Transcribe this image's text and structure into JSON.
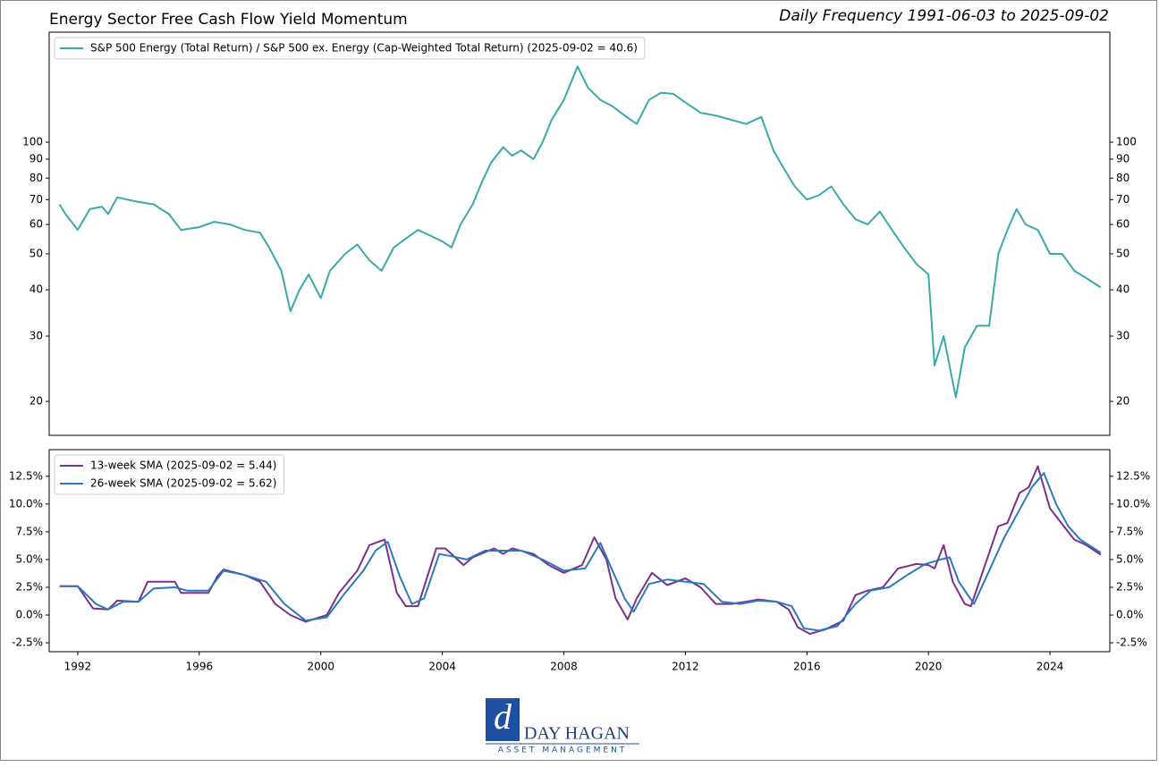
{
  "header": {
    "title": "Energy Sector Free Cash Flow Yield Momentum",
    "subtitle": "Daily Frequency 1991-06-03 to 2025-09-02"
  },
  "logo": {
    "name": "DAY HAGAN",
    "tagline": "ASSET MANAGEMENT"
  },
  "chart_data": [
    {
      "type": "line",
      "log": true,
      "legend": "upper left",
      "grid": false,
      "xlim": [
        1991.06,
        2025.97
      ],
      "ylim": [
        16.2,
        198
      ],
      "yticks": [
        20,
        30,
        40,
        50,
        60,
        70,
        80,
        90,
        100
      ],
      "series": [
        {
          "name": "S&P 500 Energy (Total Return) / S&P 500 ex. Energy (Cap-Weighted Total Return) (2025-09-02 = 40.6)",
          "color": "#3aaaa8",
          "x": [
            1991.4,
            1991.6,
            1992.0,
            1992.4,
            1992.8,
            1993.0,
            1993.3,
            1994.0,
            1994.5,
            1995.0,
            1995.4,
            1996.0,
            1996.5,
            1997.0,
            1997.5,
            1998.0,
            1998.3,
            1998.7,
            1999.0,
            1999.3,
            1999.6,
            2000.0,
            2000.3,
            2000.8,
            2001.2,
            2001.6,
            2002.0,
            2002.4,
            2002.8,
            2003.2,
            2003.6,
            2004.0,
            2004.3,
            2004.6,
            2005.0,
            2005.3,
            2005.6,
            2006.0,
            2006.3,
            2006.6,
            2007.0,
            2007.3,
            2007.6,
            2008.0,
            2008.45,
            2008.8,
            2009.2,
            2009.6,
            2010.0,
            2010.4,
            2010.8,
            2011.2,
            2011.6,
            2012.0,
            2012.5,
            2013.0,
            2013.5,
            2014.0,
            2014.5,
            2014.9,
            2015.2,
            2015.6,
            2016.0,
            2016.4,
            2016.8,
            2017.2,
            2017.6,
            2018.0,
            2018.4,
            2018.8,
            2019.2,
            2019.6,
            2020.0,
            2020.2,
            2020.5,
            2020.9,
            2021.2,
            2021.6,
            2022.0,
            2022.3,
            2022.6,
            2022.9,
            2023.2,
            2023.6,
            2024.0,
            2024.4,
            2024.8,
            2025.2,
            2025.67
          ],
          "values": [
            68,
            64,
            58,
            66,
            67,
            64,
            71,
            69,
            68,
            64,
            58,
            59,
            61,
            60,
            58,
            57,
            52,
            45,
            35,
            40,
            44,
            38,
            45,
            50,
            53,
            48,
            45,
            52,
            55,
            58,
            56,
            54,
            52,
            60,
            68,
            78,
            88,
            97,
            92,
            95,
            90,
            100,
            115,
            130,
            160,
            140,
            130,
            125,
            118,
            112,
            130,
            136,
            135,
            128,
            120,
            118,
            115,
            112,
            117,
            95,
            86,
            76,
            70,
            72,
            76,
            68,
            62,
            60,
            65,
            58,
            52,
            47,
            44,
            25,
            30,
            20.5,
            28,
            32,
            32,
            50,
            58,
            66,
            60,
            58,
            50,
            50,
            45,
            43,
            40.6
          ]
        }
      ]
    },
    {
      "type": "line",
      "log": false,
      "legend": "upper left",
      "grid": false,
      "xlim": [
        1991.06,
        2025.97
      ],
      "ylim": [
        -3.3,
        14.9
      ],
      "xticks": [
        1992,
        1996,
        2000,
        2004,
        2008,
        2012,
        2016,
        2020,
        2024
      ],
      "yticks": [
        {
          "value": -2.5,
          "label": "-2.5%"
        },
        {
          "value": 0,
          "label": "0.0%"
        },
        {
          "value": 2.5,
          "label": "2.5%"
        },
        {
          "value": 5,
          "label": "5.0%"
        },
        {
          "value": 7.5,
          "label": "7.5%"
        },
        {
          "value": 10,
          "label": "10.0%"
        },
        {
          "value": 12.5,
          "label": "12.5%"
        }
      ],
      "series": [
        {
          "name": "13-week SMA (2025-09-02 = 5.44)",
          "color": "#7b2f8e",
          "x": [
            1991.4,
            1992.0,
            1992.5,
            1993.0,
            1993.3,
            1994.0,
            1994.3,
            1995.2,
            1995.4,
            1996.3,
            1996.6,
            1996.8,
            1997.5,
            1998.0,
            1998.5,
            1999.0,
            1999.5,
            2000.2,
            2000.6,
            2001.2,
            2001.6,
            2002.1,
            2002.5,
            2002.8,
            2003.2,
            2003.8,
            2004.1,
            2004.7,
            2005.0,
            2005.7,
            2006.0,
            2006.3,
            2007.0,
            2007.5,
            2008.0,
            2008.6,
            2009.0,
            2009.4,
            2009.7,
            2010.1,
            2010.4,
            2010.9,
            2011.4,
            2012.0,
            2012.5,
            2013.0,
            2013.5,
            2014.0,
            2014.4,
            2015.0,
            2015.4,
            2015.7,
            2016.1,
            2016.6,
            2017.2,
            2017.6,
            2018.0,
            2018.5,
            2019.0,
            2019.6,
            2020.0,
            2020.2,
            2020.5,
            2020.8,
            2021.2,
            2021.4,
            2021.8,
            2022.3,
            2022.6,
            2023.0,
            2023.3,
            2023.6,
            2024.0,
            2024.4,
            2024.8,
            2025.2,
            2025.67
          ],
          "values": [
            2.6,
            2.6,
            0.6,
            0.5,
            1.3,
            1.2,
            3.0,
            3.0,
            2.0,
            2.0,
            3.5,
            4.1,
            3.6,
            3.0,
            1.0,
            0.0,
            -0.6,
            0.0,
            2.0,
            4.0,
            6.3,
            6.8,
            2.0,
            0.8,
            0.8,
            6.0,
            6.0,
            4.5,
            5.2,
            6.0,
            5.5,
            6.0,
            5.5,
            4.5,
            3.8,
            4.5,
            7.0,
            5.0,
            1.5,
            -0.4,
            1.5,
            3.8,
            2.7,
            3.3,
            2.5,
            1.0,
            1.0,
            1.2,
            1.4,
            1.2,
            0.5,
            -1.1,
            -1.7,
            -1.3,
            -0.5,
            1.8,
            2.2,
            2.5,
            4.2,
            4.6,
            4.5,
            4.2,
            6.3,
            3.0,
            1.0,
            0.8,
            4.0,
            8.0,
            8.3,
            11.0,
            11.5,
            13.4,
            9.6,
            8.2,
            6.8,
            6.3,
            5.44
          ]
        },
        {
          "name": "26-week SMA (2025-09-02 = 5.62)",
          "color": "#2a7ab8",
          "x": [
            1991.4,
            1992.0,
            1992.6,
            1993.0,
            1993.5,
            1994.0,
            1994.5,
            1995.2,
            1995.6,
            1996.3,
            1996.8,
            1997.5,
            1998.2,
            1998.8,
            1999.5,
            2000.2,
            2000.8,
            2001.4,
            2001.8,
            2002.2,
            2002.6,
            2003.0,
            2003.4,
            2003.9,
            2004.3,
            2004.8,
            2005.4,
            2006.0,
            2006.6,
            2007.3,
            2008.0,
            2008.7,
            2009.2,
            2009.6,
            2010.0,
            2010.3,
            2010.8,
            2011.4,
            2012.0,
            2012.6,
            2013.2,
            2013.8,
            2014.4,
            2015.0,
            2015.5,
            2015.9,
            2016.4,
            2017.0,
            2017.6,
            2018.1,
            2018.7,
            2019.3,
            2019.9,
            2020.4,
            2020.7,
            2021.0,
            2021.5,
            2022.0,
            2022.5,
            2022.9,
            2023.4,
            2023.8,
            2024.2,
            2024.6,
            2025.0,
            2025.67
          ],
          "values": [
            2.6,
            2.6,
            1.0,
            0.5,
            1.2,
            1.2,
            2.4,
            2.5,
            2.2,
            2.2,
            4.0,
            3.6,
            3.0,
            1.0,
            -0.5,
            -0.2,
            2.0,
            4.0,
            5.8,
            6.6,
            3.5,
            1.0,
            1.5,
            5.5,
            5.3,
            5.0,
            5.8,
            5.8,
            5.8,
            5.0,
            4.0,
            4.2,
            6.5,
            4.0,
            1.5,
            0.3,
            2.8,
            3.2,
            3.0,
            2.8,
            1.2,
            1.0,
            1.3,
            1.2,
            0.8,
            -1.2,
            -1.4,
            -1.0,
            1.0,
            2.2,
            2.5,
            3.6,
            4.6,
            5.0,
            5.2,
            3.0,
            1.0,
            4.0,
            7.0,
            9.0,
            11.5,
            12.8,
            10.0,
            8.0,
            6.8,
            5.62
          ]
        }
      ]
    }
  ]
}
